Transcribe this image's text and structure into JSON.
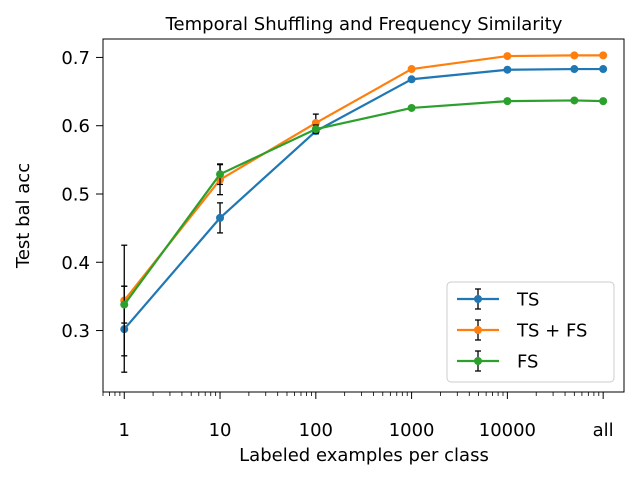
{
  "chart_data": {
    "type": "line",
    "title": "Temporal Shuffling and Frequency Similarity",
    "xlabel": "Labeled examples per class",
    "ylabel": "Test bal acc",
    "x_scale": "log",
    "x": [
      1,
      10,
      100,
      1000,
      10000,
      50000,
      100000
    ],
    "x_ticks": [
      {
        "value": 1,
        "label": "1"
      },
      {
        "value": 10,
        "label": "10"
      },
      {
        "value": 100,
        "label": "100"
      },
      {
        "value": 1000,
        "label": "1000"
      },
      {
        "value": 10000,
        "label": "10000"
      },
      {
        "value": 100000,
        "label": "all"
      }
    ],
    "xlim": [
      0.6,
      165000
    ],
    "ylim": [
      0.21,
      0.727
    ],
    "y_ticks": [
      {
        "value": 0.3,
        "label": "0.3"
      },
      {
        "value": 0.4,
        "label": "0.4"
      },
      {
        "value": 0.5,
        "label": "0.5"
      },
      {
        "value": 0.6,
        "label": "0.6"
      },
      {
        "value": 0.7,
        "label": "0.7"
      }
    ],
    "legend_position": "lower-right",
    "series": [
      {
        "name": "TS",
        "color": "#1f77b4",
        "values": [
          0.302,
          0.465,
          0.592,
          0.668,
          0.682,
          0.683,
          0.683
        ],
        "errors": [
          0.063,
          0.022,
          0.004,
          0,
          0,
          0,
          0
        ]
      },
      {
        "name": "TS + FS",
        "color": "#ff7f0e",
        "values": [
          0.344,
          0.521,
          0.604,
          0.683,
          0.702,
          0.703,
          0.703
        ],
        "errors": [
          0.081,
          0.022,
          0.013,
          0,
          0,
          0,
          0
        ]
      },
      {
        "name": "FS",
        "color": "#2ca02c",
        "values": [
          0.338,
          0.529,
          0.595,
          0.626,
          0.636,
          0.637,
          0.636
        ],
        "errors": [
          0.027,
          0.015,
          0.006,
          0,
          0,
          0,
          0
        ]
      }
    ]
  }
}
